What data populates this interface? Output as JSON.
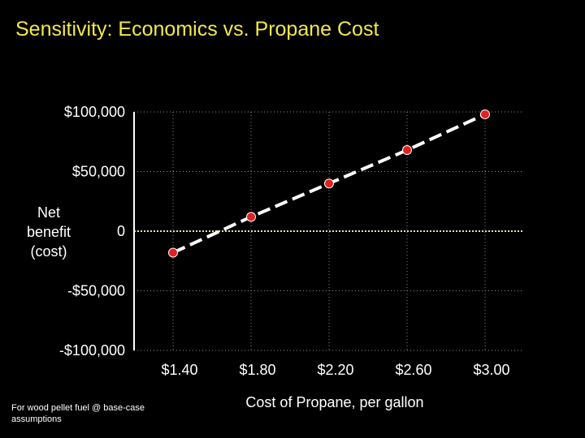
{
  "title": "Sensitivity: Economics vs. Propane Cost",
  "note": "For wood pellet fuel @ base-case assumptions",
  "ylabel_lines": [
    "Net",
    "benefit",
    "(cost)"
  ],
  "colors": {
    "title": "#f2e84a",
    "marker": "#e32020",
    "zero_line": "#e8e39a",
    "grid": "#8a8a8a"
  },
  "chart_data": {
    "type": "line",
    "title": "Sensitivity: Economics vs. Propane Cost",
    "xlabel": "Cost of Propane, per gallon",
    "ylabel": "Net benefit (cost)",
    "x": [
      1.4,
      1.8,
      2.2,
      2.6,
      3.0
    ],
    "x_tick_labels": [
      "$1.40",
      "$1.80",
      "$2.20",
      "$2.60",
      "$3.00"
    ],
    "y_ticks": [
      100000,
      50000,
      0,
      -50000,
      -100000
    ],
    "y_tick_labels": [
      "$100,000",
      "$50,000",
      "0",
      "-$50,000",
      "-$100,000"
    ],
    "ylim": [
      -100000,
      100000
    ],
    "series": [
      {
        "name": "Net benefit",
        "values": [
          -18000,
          12000,
          40000,
          68000,
          98000
        ]
      }
    ],
    "grid": true,
    "zero_line": true
  }
}
